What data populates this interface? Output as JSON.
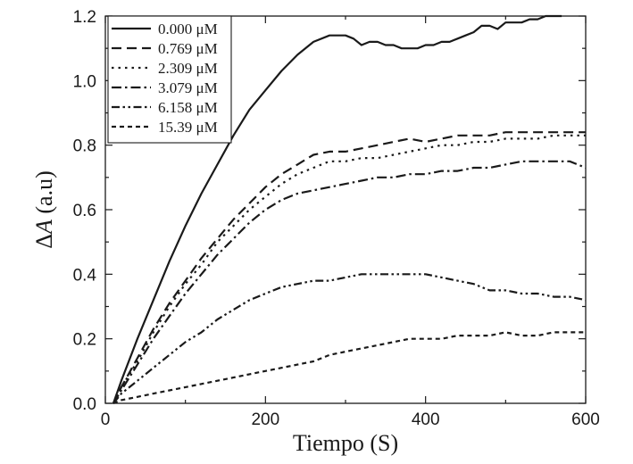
{
  "chart_data": {
    "type": "line",
    "title": "",
    "xlabel": "Tiempo (S)",
    "ylabel_prefix": "Δ",
    "ylabel_var": "A",
    "ylabel_suffix": " (a.u)",
    "xlim": [
      0,
      600
    ],
    "ylim": [
      0,
      1.2
    ],
    "xticks": [
      0,
      200,
      400,
      600
    ],
    "xtick_labels": [
      "0",
      "200",
      "400",
      "600"
    ],
    "yticks": [
      0,
      0.2,
      0.4,
      0.6,
      0.8,
      1.0,
      1.2
    ],
    "ytick_labels": [
      "0.0",
      "0.2",
      "0.4",
      "0.6",
      "0.8",
      "1.0",
      "1.2"
    ],
    "grid": false,
    "legend_position": "top-left",
    "series": [
      {
        "name": "0.000 μM",
        "dash": "solid",
        "x": [
          10,
          20,
          40,
          60,
          80,
          100,
          120,
          140,
          160,
          180,
          200,
          220,
          240,
          260,
          280,
          300,
          310,
          320,
          330,
          340,
          350,
          360,
          370,
          380,
          390,
          400,
          410,
          420,
          430,
          440,
          450,
          460,
          470,
          480,
          490,
          500,
          510,
          520,
          530,
          540,
          550,
          560,
          570
        ],
        "y": [
          0.0,
          0.07,
          0.2,
          0.32,
          0.44,
          0.55,
          0.65,
          0.74,
          0.83,
          0.91,
          0.97,
          1.03,
          1.08,
          1.12,
          1.14,
          1.14,
          1.13,
          1.11,
          1.12,
          1.12,
          1.11,
          1.11,
          1.1,
          1.1,
          1.1,
          1.11,
          1.11,
          1.12,
          1.12,
          1.13,
          1.14,
          1.15,
          1.17,
          1.17,
          1.16,
          1.18,
          1.18,
          1.18,
          1.19,
          1.19,
          1.2,
          1.2,
          1.2
        ]
      },
      {
        "name": "0.769 μM",
        "dash": "long-dash",
        "x": [
          10,
          20,
          40,
          60,
          80,
          100,
          120,
          140,
          160,
          180,
          200,
          220,
          240,
          260,
          280,
          300,
          320,
          340,
          360,
          380,
          400,
          420,
          440,
          460,
          480,
          500,
          520,
          540,
          560,
          580,
          600
        ],
        "y": [
          0.0,
          0.05,
          0.14,
          0.23,
          0.31,
          0.38,
          0.45,
          0.51,
          0.57,
          0.62,
          0.67,
          0.71,
          0.74,
          0.77,
          0.78,
          0.78,
          0.79,
          0.8,
          0.81,
          0.82,
          0.81,
          0.82,
          0.83,
          0.83,
          0.83,
          0.84,
          0.84,
          0.84,
          0.84,
          0.84,
          0.84
        ]
      },
      {
        "name": "2.309 μM",
        "dash": "dotted",
        "x": [
          10,
          20,
          40,
          60,
          80,
          100,
          120,
          140,
          160,
          180,
          200,
          220,
          240,
          260,
          280,
          300,
          320,
          340,
          360,
          380,
          400,
          420,
          440,
          460,
          480,
          500,
          520,
          540,
          560,
          580,
          600
        ],
        "y": [
          0.0,
          0.05,
          0.13,
          0.22,
          0.3,
          0.37,
          0.43,
          0.5,
          0.55,
          0.6,
          0.64,
          0.68,
          0.71,
          0.73,
          0.75,
          0.75,
          0.76,
          0.76,
          0.77,
          0.78,
          0.79,
          0.8,
          0.8,
          0.81,
          0.81,
          0.82,
          0.82,
          0.82,
          0.83,
          0.83,
          0.83
        ]
      },
      {
        "name": "3.079 μM",
        "dash": "dash-dot",
        "x": [
          10,
          20,
          40,
          60,
          80,
          100,
          120,
          140,
          160,
          180,
          200,
          220,
          240,
          260,
          280,
          300,
          320,
          340,
          360,
          380,
          400,
          420,
          440,
          460,
          480,
          500,
          520,
          540,
          560,
          580,
          600
        ],
        "y": [
          0.0,
          0.04,
          0.12,
          0.2,
          0.27,
          0.34,
          0.4,
          0.46,
          0.51,
          0.56,
          0.6,
          0.63,
          0.65,
          0.66,
          0.67,
          0.68,
          0.69,
          0.7,
          0.7,
          0.71,
          0.71,
          0.72,
          0.72,
          0.73,
          0.73,
          0.74,
          0.75,
          0.75,
          0.75,
          0.75,
          0.73
        ]
      },
      {
        "name": "6.158 μM",
        "dash": "dash-dot-dot",
        "x": [
          10,
          20,
          40,
          60,
          80,
          100,
          120,
          140,
          160,
          180,
          200,
          220,
          240,
          260,
          280,
          300,
          320,
          340,
          360,
          380,
          400,
          420,
          440,
          460,
          480,
          500,
          520,
          540,
          560,
          580,
          600
        ],
        "y": [
          0.0,
          0.03,
          0.07,
          0.11,
          0.15,
          0.19,
          0.22,
          0.26,
          0.29,
          0.32,
          0.34,
          0.36,
          0.37,
          0.38,
          0.38,
          0.39,
          0.4,
          0.4,
          0.4,
          0.4,
          0.4,
          0.39,
          0.38,
          0.37,
          0.35,
          0.35,
          0.34,
          0.34,
          0.33,
          0.33,
          0.32
        ]
      },
      {
        "name": "15.39 μM",
        "dash": "short-dash",
        "x": [
          10,
          20,
          40,
          60,
          80,
          100,
          120,
          140,
          160,
          180,
          200,
          220,
          240,
          260,
          280,
          300,
          320,
          340,
          360,
          380,
          400,
          420,
          440,
          460,
          480,
          500,
          520,
          540,
          560,
          580,
          600
        ],
        "y": [
          0.0,
          0.01,
          0.02,
          0.03,
          0.04,
          0.05,
          0.06,
          0.07,
          0.08,
          0.09,
          0.1,
          0.11,
          0.12,
          0.13,
          0.15,
          0.16,
          0.17,
          0.18,
          0.19,
          0.2,
          0.2,
          0.2,
          0.21,
          0.21,
          0.21,
          0.22,
          0.21,
          0.21,
          0.22,
          0.22,
          0.22
        ]
      }
    ]
  },
  "colors": {
    "line": "#1a1a1a",
    "background": "#ffffff"
  }
}
